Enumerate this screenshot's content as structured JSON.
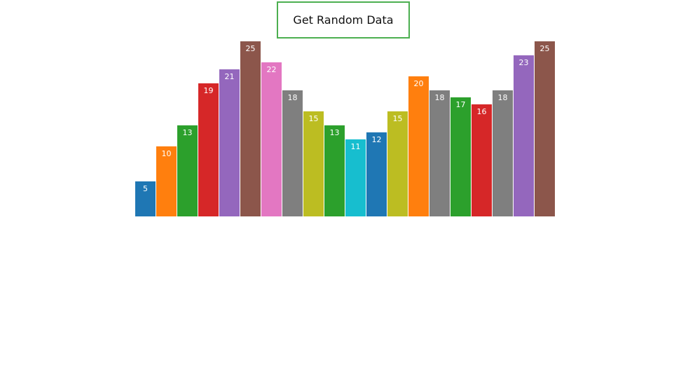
{
  "controls": {
    "random_button_label": "Get Random Data"
  },
  "colors": {
    "button_border": "#4caf50",
    "palette": [
      "#1f77b4",
      "#ff7f0e",
      "#2ca02c",
      "#d62728",
      "#9467bd",
      "#8c564b",
      "#e377c2",
      "#7f7f7f",
      "#bcbd22",
      "#17becf"
    ],
    "bar_colors": [
      "#1f77b4",
      "#ff7f0e",
      "#2ca02c",
      "#d62728",
      "#9467bd",
      "#8c564b",
      "#e377c2",
      "#7f7f7f",
      "#bcbd22",
      "#2ca02c",
      "#17becf",
      "#1f77b4",
      "#bcbd22",
      "#ff7f0e",
      "#7f7f7f",
      "#2ca02c",
      "#d62728",
      "#7f7f7f",
      "#9467bd",
      "#8c564b"
    ]
  },
  "chart_data": {
    "type": "bar",
    "values": [
      5,
      10,
      13,
      19,
      21,
      25,
      22,
      18,
      15,
      13,
      11,
      12,
      15,
      20,
      18,
      17,
      16,
      18,
      23,
      25
    ],
    "ylim": [
      0,
      25
    ],
    "data_labels": true,
    "grid": false,
    "axes_visible": false
  }
}
